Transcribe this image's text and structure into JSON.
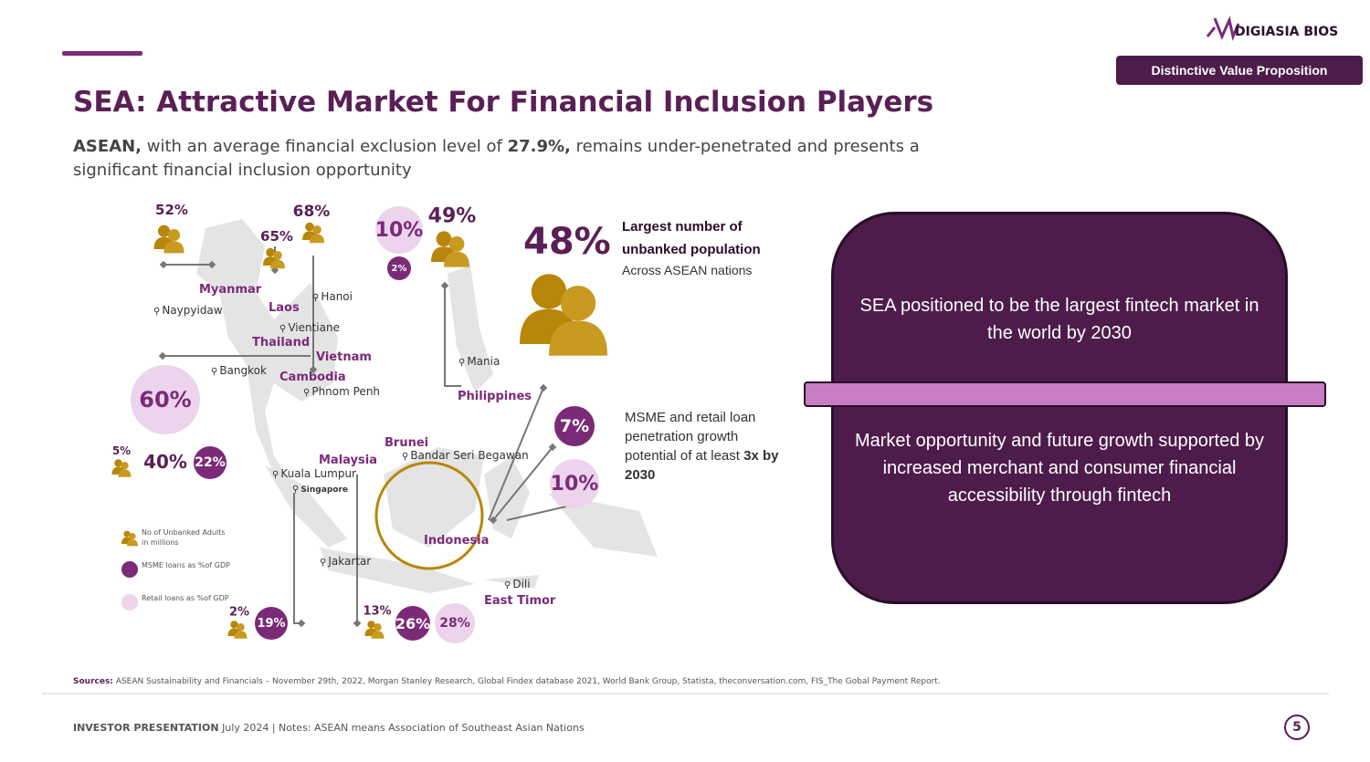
{
  "header": {
    "logo": "DIGIASIA BIOS",
    "badge": "Distinctive Value Proposition",
    "title": "SEA: Attractive Market For Financial Inclusion Players",
    "subtitle": [
      "ASEAN,",
      "with an average financial exclusion level of",
      "27.9%,",
      "remains under-penetrated and presents a significant financial inclusion opportunity"
    ]
  },
  "map": {
    "countries": [
      "Myanmar",
      "Laos",
      "Thailand",
      "Vietnam",
      "Cambodia",
      "Philippines",
      "Brunei",
      "Malaysia",
      "Indonesia",
      "East Timor"
    ],
    "cities": [
      "Naypyidaw",
      "Hanoi",
      "Vientiane",
      "Bangkok",
      "Phnom Penh",
      "Mania",
      "Bandar Seri Begawan",
      "Kuala Lumpur",
      "Singapore",
      "Jakartar",
      "Dili"
    ],
    "stats": [
      "52%",
      "65%",
      "68%",
      "10%",
      "2%",
      "49%",
      "60%",
      "40%",
      "22%",
      "5%",
      "7%",
      "10%",
      "2%",
      "19%",
      "13%",
      "26%",
      "28%"
    ],
    "legend": [
      "No of Unbanked Adults in millions",
      "MSME loans as %of GDP",
      "Retail loans as %of GDP"
    ]
  },
  "callouts": {
    "unbanked_value": "48%",
    "unbanked_title": "Largest number of unbanked population",
    "unbanked_sub": "Across ASEAN nations",
    "growth_text": "MSME and retail loan penetration growth potential of at least",
    "growth_bold": "3x by 2030"
  },
  "panel": {
    "top": "SEA positioned to be the largest fintech market in the world by 2030",
    "bottom": "Market opportunity and future growth supported by increased merchant and consumer financial accessibility through fintech"
  },
  "sources": {
    "label": "Sources:",
    "text": "ASEAN Sustainability and Financials – November 29th, 2022, Morgan Stanley Research, Global Findex database 2021, World Bank Group, Statista, theconversation.com, FIS_The Gobal Payment Report."
  },
  "footer": {
    "label": "INVESTOR PRESENTATION",
    "notes": "July 2024 | Notes: ASEAN means Association of Southeast Asian Nations",
    "page": "5"
  }
}
